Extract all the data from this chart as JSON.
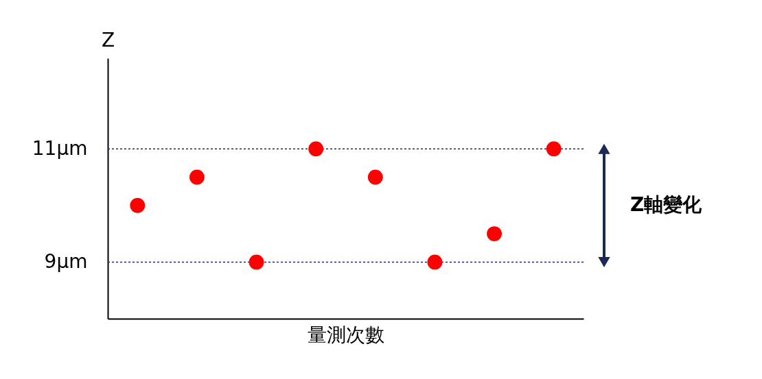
{
  "chart_data": {
    "type": "scatter",
    "xlabel": "量測次數",
    "ylabel": "Z",
    "categories": [
      null,
      null,
      null,
      null,
      null,
      null,
      null,
      null
    ],
    "series": [
      {
        "color": "#ff0000",
        "values": [
          10.0,
          10.5,
          9.0,
          11.0,
          10.5,
          9.0,
          9.5,
          11.0
        ]
      }
    ],
    "ylim": [
      8,
      12.6
    ],
    "yticks": [
      {
        "value": 9,
        "label": "9μm"
      },
      {
        "value": 11,
        "label": "11μm"
      }
    ],
    "ref_lines": [
      {
        "axis": "y",
        "value": 11,
        "color": "#1f1fa0",
        "line_style": "dotted"
      },
      {
        "axis": "y",
        "value": 9,
        "color": "#1f1fa0",
        "line_style": "dotted"
      }
    ],
    "annotations": [
      "Z軸變化"
    ],
    "tick_labels": "y",
    "grid": false,
    "marker": "circle"
  }
}
